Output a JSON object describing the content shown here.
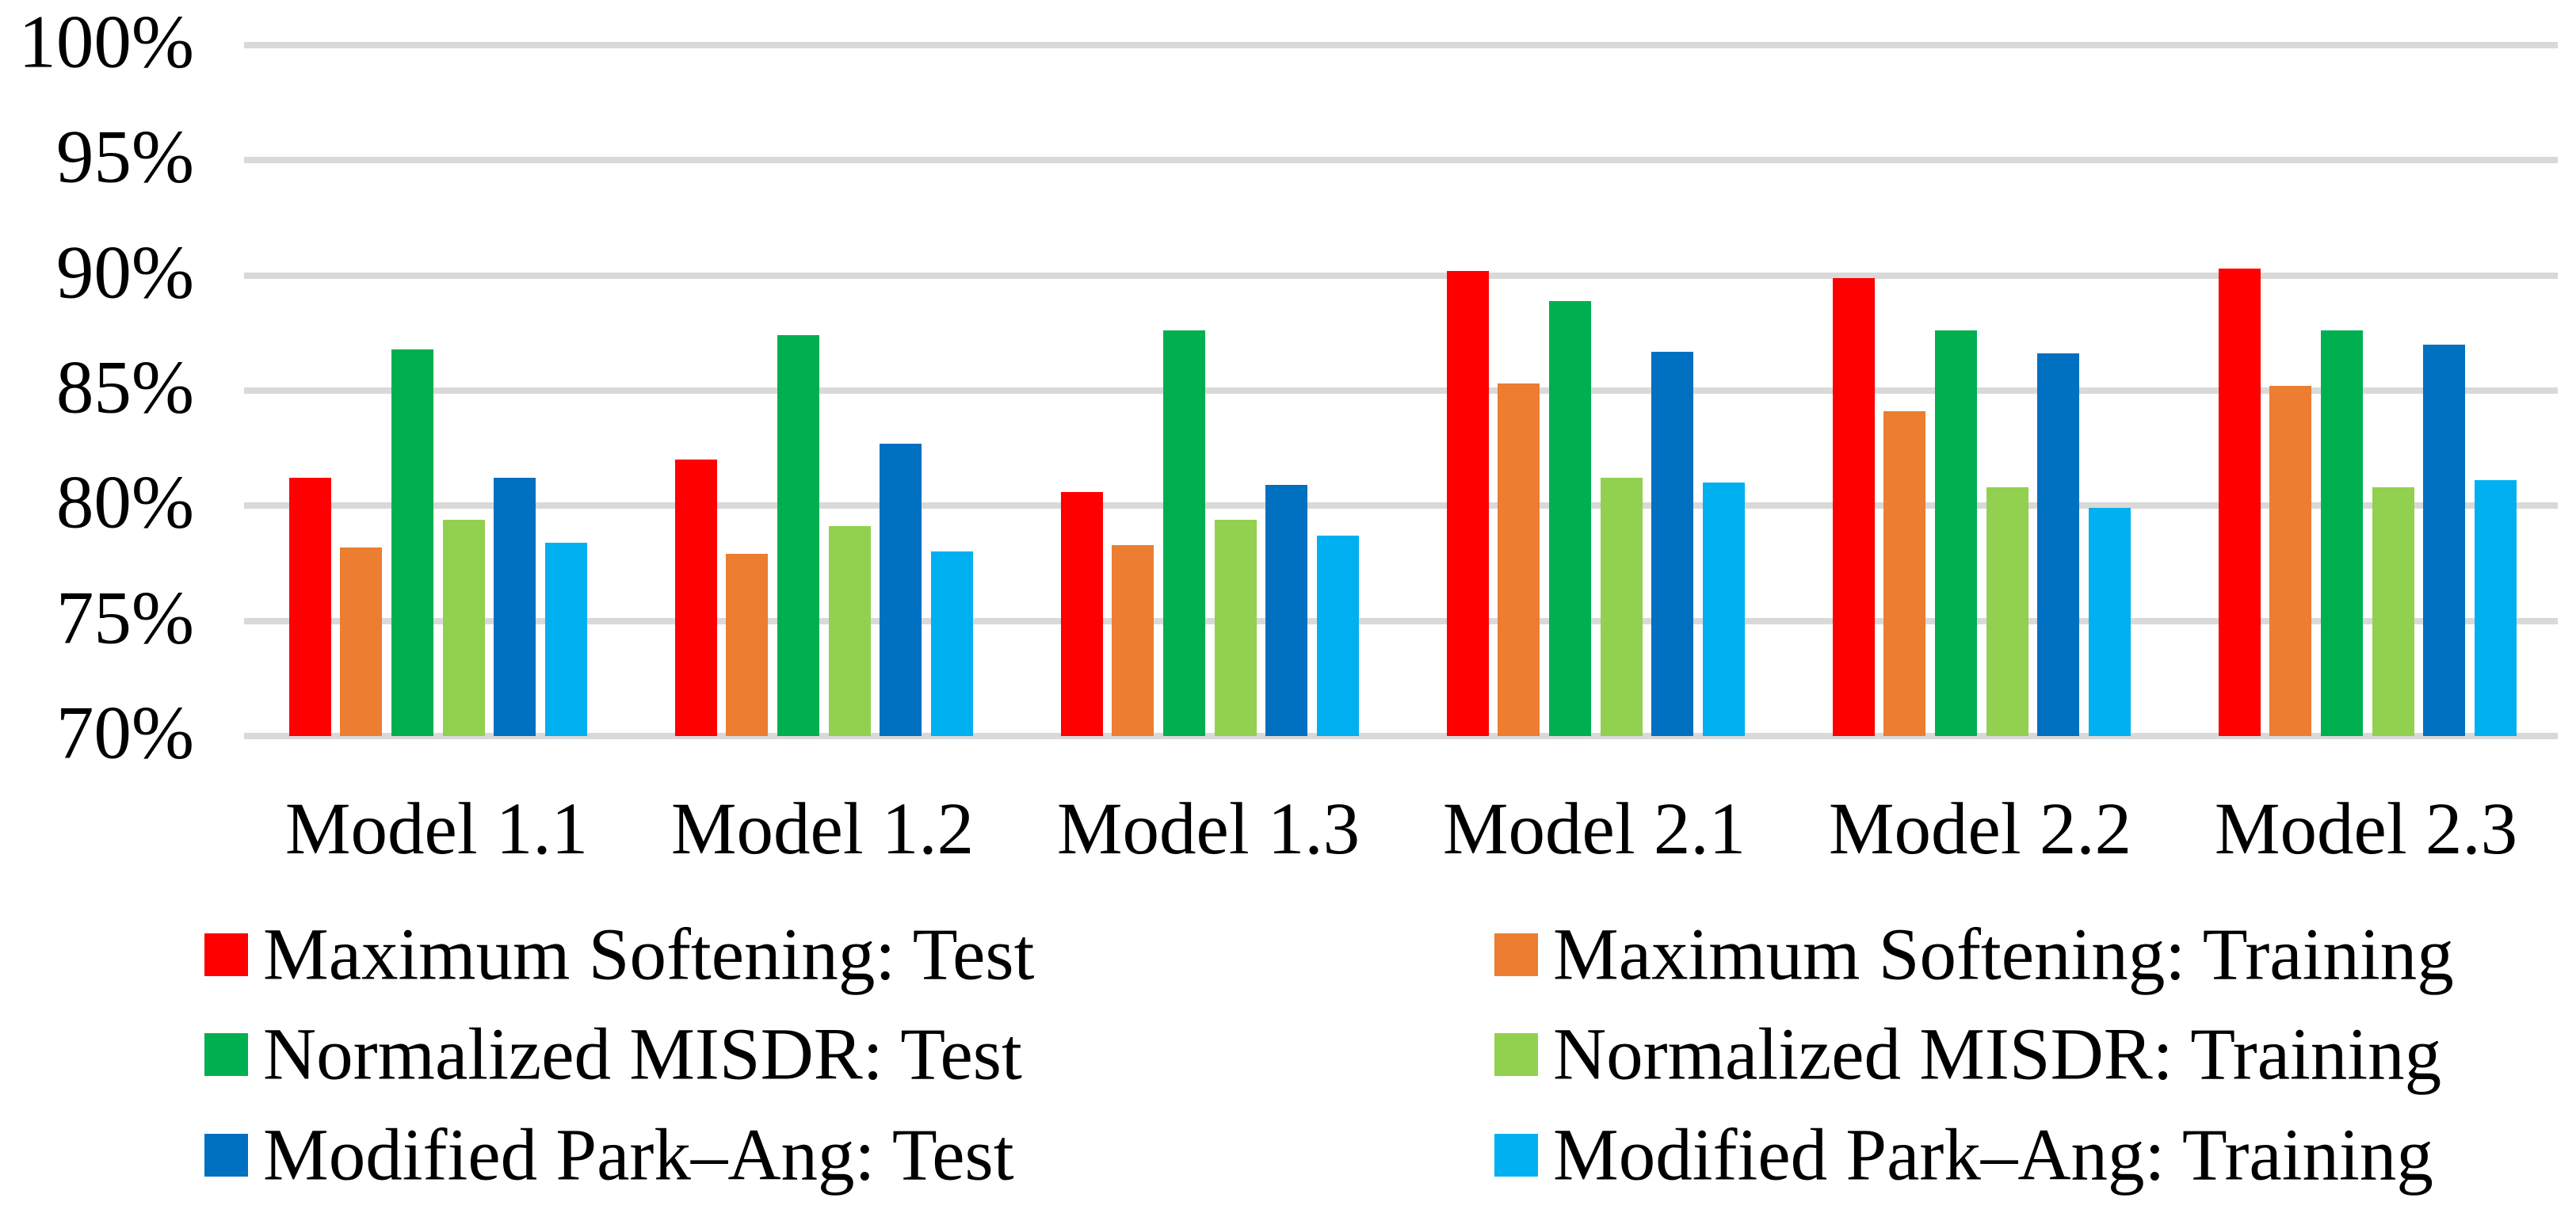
{
  "chart_data": {
    "type": "bar",
    "title": "",
    "xlabel": "",
    "ylabel": "",
    "ylim": [
      70,
      100
    ],
    "y_tick_step": 5,
    "y_tick_labels": [
      "100%",
      "95%",
      "90%",
      "85%",
      "80%",
      "75%",
      "70%"
    ],
    "grid": "horizontal",
    "gridline_color": "#D9D9D9",
    "legend_position": "bottom-two-columns",
    "categories": [
      "Model 1.1",
      "Model 1.2",
      "Model 1.3",
      "Model 2.1",
      "Model 2.2",
      "Model 2.3"
    ],
    "series": [
      {
        "name": "Maximum Softening: Test",
        "color": "#FE0000",
        "legend_column": 0,
        "values": [
          81.2,
          82.0,
          80.6,
          90.2,
          89.9,
          90.3
        ]
      },
      {
        "name": "Maximum Softening: Training",
        "color": "#ED7D31",
        "legend_column": 1,
        "values": [
          78.2,
          77.9,
          78.3,
          85.3,
          84.1,
          85.2
        ]
      },
      {
        "name": "Normalized MISDR: Test",
        "color": "#00B050",
        "legend_column": 0,
        "values": [
          86.8,
          87.4,
          87.6,
          88.9,
          87.6,
          87.6
        ]
      },
      {
        "name": "Normalized MISDR: Training",
        "color": "#92D050",
        "legend_column": 1,
        "values": [
          79.4,
          79.1,
          79.4,
          81.2,
          80.8,
          80.8
        ]
      },
      {
        "name": "Modified Park–Ang: Test",
        "color": "#0070C0",
        "legend_column": 0,
        "values": [
          81.2,
          82.7,
          80.9,
          86.7,
          86.6,
          87.0
        ]
      },
      {
        "name": "Modified Park–Ang: Training",
        "color": "#00B0F0",
        "legend_column": 1,
        "values": [
          78.4,
          78.0,
          78.7,
          81.0,
          79.9,
          81.1
        ]
      }
    ]
  }
}
